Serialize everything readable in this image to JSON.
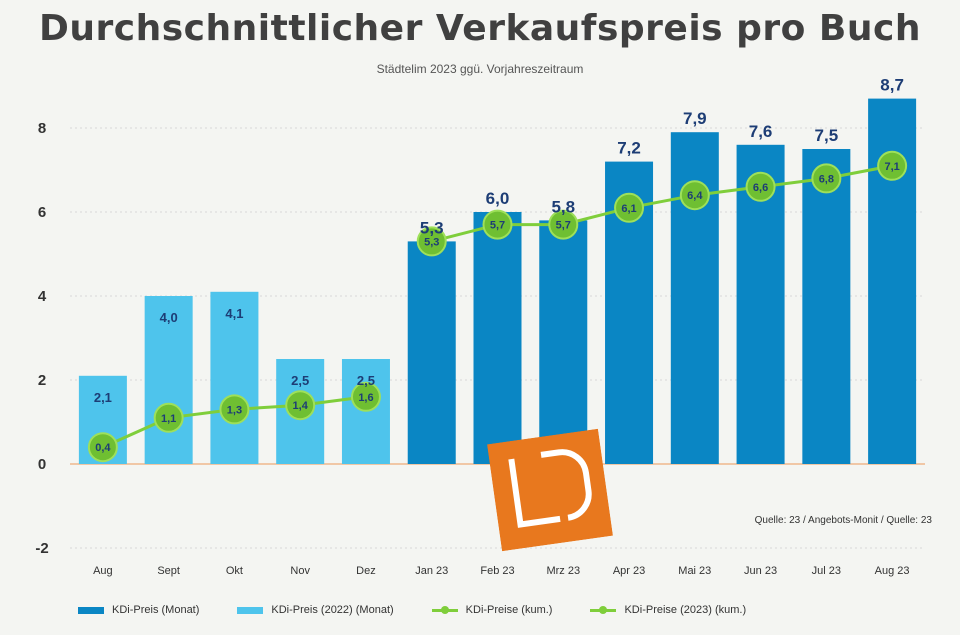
{
  "title": "Durchschnittlicher Verkaufspreis pro Buch",
  "subtitle": "Städtelim 2023 ggü. Vorjahreszeitraum",
  "source": "Quelle: 23 / Angebots-Monit / Quelle: 23",
  "colors": {
    "bar_dark": "#0a86c4",
    "bar_light": "#4ec4ec",
    "line": "#7fce3b",
    "marker": "#6fbf32",
    "logo": "#e8781e",
    "grid": "#d8d8d8",
    "zero_line": "#f0c7a6"
  },
  "legend": [
    {
      "label": "KDi-Preis (Monat)",
      "kind": "bar",
      "color": "#0a86c4"
    },
    {
      "label": "KDi-Preis (2022) (Monat)",
      "kind": "bar",
      "color": "#4ec4ec"
    },
    {
      "label": "KDi-Preise (kum.)",
      "kind": "line",
      "color": "#7fce3b"
    },
    {
      "label": "KDi-Preise (2023) (kum.)",
      "kind": "line",
      "color": "#7fce3b"
    }
  ],
  "chart_data": {
    "type": "bar",
    "title": "Durchschnittlicher Verkaufspreis pro Buch",
    "categories": [
      "Aug",
      "Sept",
      "Okt",
      "Nov",
      "Dez",
      "Jan 23",
      "Feb 23",
      "Mrz 23",
      "Apr 23",
      "Mai 23",
      "Jun 23",
      "Jul 23",
      "Aug 23"
    ],
    "ylim": [
      -2,
      8
    ],
    "yticks": [
      -2,
      0,
      2,
      4,
      6,
      8
    ],
    "grid": true,
    "legend_position": "bottom",
    "series": [
      {
        "name": "KDi-Preis (2022) (Monat)",
        "type": "bar",
        "color": "#4ec4ec",
        "values": [
          2.1,
          4.0,
          4.1,
          2.5,
          2.5,
          null,
          null,
          null,
          null,
          null,
          null,
          null,
          null
        ],
        "labels": [
          "2,1",
          "4,0",
          "4,1",
          "2,5",
          "2,5",
          "",
          "",
          "",
          "",
          "",
          "",
          "",
          ""
        ]
      },
      {
        "name": "KDi-Preis (Monat)",
        "type": "bar",
        "color": "#0a86c4",
        "values": [
          null,
          null,
          null,
          null,
          null,
          5.3,
          6.0,
          5.8,
          7.2,
          7.9,
          7.6,
          7.5,
          8.7
        ],
        "labels": [
          "",
          "",
          "",
          "",
          "",
          "5,3",
          "6,0",
          "5,8",
          "7,2",
          "7,9",
          "7,6",
          "7,5",
          "8,7"
        ]
      },
      {
        "name": "KDi-Preise (kum.)",
        "type": "line",
        "color": "#7fce3b",
        "values": [
          0.4,
          1.1,
          1.3,
          1.4,
          1.6,
          null,
          null,
          null,
          null,
          null,
          null,
          null,
          null
        ],
        "labels": [
          "0,4",
          "1,1",
          "1,3",
          "1,4",
          "1,6",
          "",
          "",
          "",
          "",
          "",
          "",
          "",
          ""
        ]
      },
      {
        "name": "KDi-Preise (2023) (kum.)",
        "type": "line",
        "color": "#7fce3b",
        "values": [
          null,
          null,
          null,
          null,
          null,
          5.3,
          5.7,
          5.7,
          6.1,
          6.4,
          6.6,
          6.8,
          7.1
        ],
        "labels": [
          "",
          "",
          "",
          "",
          "",
          "5,3",
          "5,7",
          "5,7",
          "6,1",
          "6,4",
          "6,6",
          "6,8",
          "7,1"
        ]
      }
    ]
  }
}
